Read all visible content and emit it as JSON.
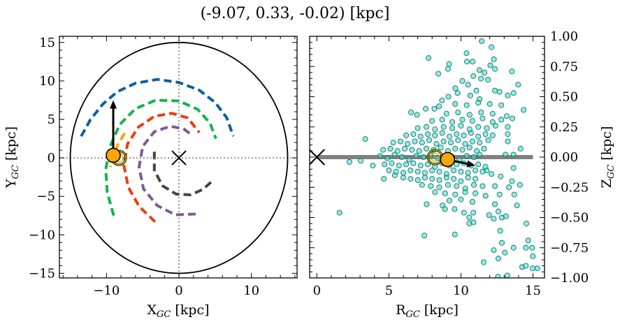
{
  "title": "(-9.07, 0.33, -0.02) [kpc]",
  "colors": {
    "blue": "#0e5ea3",
    "green": "#13b54b",
    "red": "#f23a0e",
    "purple": "#7c5a9c",
    "gray": "#454545",
    "orange": "#ffa500",
    "ring": "#b3a900",
    "scatter_fill": "#40e0d0",
    "scatter_edge": "#0d5f5a",
    "zline": "#808080"
  },
  "chart_data": [
    {
      "type": "line",
      "panel": "left",
      "xlabel": {
        "main": "X",
        "sub": "GC",
        "unit": " [kpc]"
      },
      "ylabel": {
        "main": "Y",
        "sub": "GC",
        "unit": " [kpc]"
      },
      "xlim": [
        -16.5,
        16.3
      ],
      "ylim": [
        -15.6,
        15.8
      ],
      "xticks": [
        -10,
        0,
        10
      ],
      "yticks": [
        -15,
        -10,
        -5,
        0,
        5,
        10,
        15
      ],
      "xtick_labels": [
        "−10",
        "0",
        "10"
      ],
      "ytick_labels": [
        "−15",
        "−10",
        "−5",
        "0",
        "5",
        "10",
        "15"
      ],
      "boundary_circle_radius": 15,
      "center_marker": [
        0,
        0
      ],
      "arms": [
        {
          "color": "blue",
          "points": [
            [
              -13.5,
              2.8
            ],
            [
              -12.2,
              5
            ],
            [
              -10.5,
              7
            ],
            [
              -8.5,
              8.6
            ],
            [
              -6,
              9.7
            ],
            [
              -3,
              10.2
            ],
            [
              0,
              9.8
            ],
            [
              2.8,
              8.8
            ],
            [
              5,
              7.2
            ],
            [
              6.6,
              5.2
            ],
            [
              7.5,
              2.8
            ]
          ]
        },
        {
          "color": "green",
          "points": [
            [
              -9,
              -7.5
            ],
            [
              -9.9,
              -4.5
            ],
            [
              -10.1,
              -1.5
            ],
            [
              -9.5,
              1.5
            ],
            [
              -8.2,
              4.3
            ],
            [
              -6,
              6.4
            ],
            [
              -3.2,
              7.5
            ],
            [
              0,
              7.4
            ],
            [
              2.6,
              6.3
            ],
            [
              4.3,
              4.5
            ],
            [
              5.1,
              2.5
            ]
          ]
        },
        {
          "color": "red",
          "points": [
            [
              -3.3,
              -8.3
            ],
            [
              -5.5,
              -6.3
            ],
            [
              -7,
              -3.8
            ],
            [
              -7.6,
              -1
            ],
            [
              -7.1,
              1.8
            ],
            [
              -5.6,
              4
            ],
            [
              -3.4,
              5.4
            ],
            [
              -1,
              5.8
            ],
            [
              1.2,
              5.2
            ],
            [
              2.8,
              3.3
            ]
          ]
        },
        {
          "color": "purple",
          "points": [
            [
              2.3,
              -7.3
            ],
            [
              -0.5,
              -7.4
            ],
            [
              -3,
              -6.2
            ],
            [
              -4.9,
              -4
            ],
            [
              -5.5,
              -1.2
            ],
            [
              -5,
              1.5
            ],
            [
              -3.4,
              3.4
            ],
            [
              -1.2,
              4.1
            ],
            [
              0.6,
              3.8
            ],
            [
              1.6,
              3.1
            ]
          ]
        },
        {
          "color": "gray",
          "points": [
            [
              -3.4,
              0.8
            ],
            [
              -3.4,
              -1.6
            ],
            [
              -2.3,
              -3.6
            ],
            [
              -0.4,
              -4.7
            ],
            [
              1.6,
              -4.8
            ],
            [
              3.3,
              -4.1
            ],
            [
              4.6,
              -3
            ]
          ]
        },
        {
          "color": "orange",
          "points": [
            [
              -7.5,
              3.2
            ],
            [
              -8.5,
              1.6
            ],
            [
              -9.1,
              0
            ],
            [
              -9.5,
              -1.2
            ]
          ]
        }
      ],
      "sun": {
        "x": -9.07,
        "y": 0.33
      },
      "velocity_arrow_to": {
        "x": -9.07,
        "y": 7.5
      },
      "reference_ring": {
        "x": -8.3,
        "y": 0
      }
    },
    {
      "type": "scatter",
      "panel": "right",
      "xlabel": {
        "main": "R",
        "sub": "GC",
        "unit": " [kpc]"
      },
      "ylabel": {
        "main": "Z",
        "sub": "GC",
        "unit": " [kpc]"
      },
      "xlim": [
        -0.5,
        15.8
      ],
      "ylim": [
        -1.0,
        1.0
      ],
      "xticks": [
        0,
        5,
        10,
        15
      ],
      "yticks": [
        -1.0,
        -0.75,
        -0.5,
        -0.25,
        0.0,
        0.25,
        0.5,
        0.75,
        1.0
      ],
      "xtick_labels": [
        "0",
        "5",
        "10",
        "15"
      ],
      "ytick_labels": [
        "−1.00",
        "−0.75",
        "−0.50",
        "−0.25",
        "0.00",
        "0.25",
        "0.50",
        "0.75",
        "1.00"
      ],
      "ytick_side": "right",
      "plane_line": {
        "from": 0,
        "to": 15,
        "z": 0
      },
      "center_marker": [
        0,
        0
      ],
      "sun": {
        "R": 9.07,
        "z": -0.02
      },
      "velocity_arrow_to": {
        "R": 11.0,
        "z": -0.07
      },
      "reference_ring": {
        "R": 8.2,
        "z": 0
      },
      "points": [
        [
          11.44,
          0.96
        ],
        [
          12.12,
          0.91
        ],
        [
          10.39,
          0.86
        ],
        [
          7.75,
          0.82
        ],
        [
          12.29,
          0.81
        ],
        [
          10.42,
          0.79
        ],
        [
          10.82,
          0.79
        ],
        [
          9.18,
          0.77
        ],
        [
          9.1,
          0.73
        ],
        [
          8.43,
          0.69
        ],
        [
          12.04,
          0.76
        ],
        [
          12.36,
          0.73
        ],
        [
          11.28,
          0.72
        ],
        [
          13.54,
          0.71
        ],
        [
          11.63,
          0.7
        ],
        [
          10.86,
          0.67
        ],
        [
          10.1,
          0.63
        ],
        [
          13.97,
          0.6
        ],
        [
          10.5,
          0.6
        ],
        [
          11.39,
          0.65
        ],
        [
          11.87,
          0.64
        ],
        [
          9.61,
          0.57
        ],
        [
          9.77,
          0.53
        ],
        [
          11.07,
          0.55
        ],
        [
          12.36,
          0.55
        ],
        [
          12.68,
          0.54
        ],
        [
          13.25,
          0.51
        ],
        [
          13.65,
          0.53
        ],
        [
          8.69,
          0.47
        ],
        [
          9.13,
          0.5
        ],
        [
          10.66,
          0.51
        ],
        [
          11.3,
          0.48
        ],
        [
          7.56,
          0.4
        ],
        [
          8.16,
          0.4
        ],
        [
          8.48,
          0.42
        ],
        [
          6.54,
          0.37
        ],
        [
          6.95,
          0.35
        ],
        [
          14.35,
          0.39
        ],
        [
          13.17,
          0.34
        ],
        [
          13.57,
          0.32
        ],
        [
          13.25,
          0.25
        ],
        [
          13.25,
          0.19
        ],
        [
          13.25,
          0.13
        ],
        [
          14.14,
          0.07
        ],
        [
          13.65,
          0.02
        ],
        [
          13.09,
          0.02
        ],
        [
          3.36,
          0.15
        ],
        [
          2.26,
          -0.04
        ],
        [
          3.04,
          -0.03
        ],
        [
          3.88,
          -0.07
        ],
        [
          4.65,
          -0.18
        ],
        [
          5.41,
          -0.15
        ],
        [
          1.57,
          -0.46
        ],
        [
          7.46,
          -0.65
        ],
        [
          9.58,
          -0.64
        ],
        [
          7.62,
          -0.39
        ],
        [
          8.72,
          -0.4
        ],
        [
          8.89,
          -0.43
        ],
        [
          9.56,
          -0.43
        ],
        [
          10.21,
          -0.46
        ],
        [
          10.58,
          -0.5
        ],
        [
          10.58,
          -0.55
        ],
        [
          10.87,
          -0.54
        ],
        [
          10.86,
          -0.46
        ],
        [
          11.95,
          -0.48
        ],
        [
          12.28,
          -0.51
        ],
        [
          12.84,
          -0.5
        ],
        [
          13.12,
          -0.49
        ],
        [
          12.73,
          -0.61
        ],
        [
          13.89,
          -0.4
        ],
        [
          13.7,
          -0.31
        ],
        [
          14.09,
          -0.23
        ],
        [
          13.54,
          -0.2
        ],
        [
          13.65,
          -0.09
        ],
        [
          14.54,
          -0.55
        ],
        [
          14.67,
          -0.69
        ],
        [
          13.65,
          -0.75
        ],
        [
          14.51,
          -0.75
        ],
        [
          14.94,
          -0.75
        ],
        [
          14.99,
          -0.82
        ],
        [
          12.84,
          -0.71
        ],
        [
          12.28,
          -0.77
        ],
        [
          13.05,
          -0.79
        ],
        [
          12.6,
          -0.84
        ],
        [
          11.58,
          -0.87
        ],
        [
          14.25,
          -0.91
        ],
        [
          14.51,
          -0.9
        ],
        [
          14.98,
          -0.92
        ],
        [
          15.31,
          -0.92
        ],
        [
          12.57,
          -0.99
        ],
        [
          13.22,
          -0.98
        ],
        [
          12.36,
          -0.39
        ],
        [
          12.6,
          -0.45
        ],
        [
          11.71,
          -0.32
        ],
        [
          12.68,
          -0.31
        ],
        [
          12.36,
          -0.24
        ],
        [
          13.33,
          -0.25
        ],
        [
          12.76,
          -0.16
        ],
        [
          11.79,
          -0.11
        ],
        [
          12.12,
          -0.14
        ],
        [
          4.4,
          0.01
        ],
        [
          4.9,
          -0.01
        ],
        [
          5.4,
          0.02
        ],
        [
          5.9,
          0.0
        ],
        [
          6.4,
          -0.02
        ],
        [
          6.9,
          0.01
        ],
        [
          7.4,
          0.0
        ],
        [
          7.9,
          0.02
        ],
        [
          8.4,
          -0.01
        ],
        [
          8.9,
          0.01
        ],
        [
          9.4,
          0.0
        ],
        [
          9.9,
          -0.02
        ],
        [
          10.4,
          0.01
        ],
        [
          10.9,
          0.0
        ],
        [
          11.3,
          0.02
        ],
        [
          4.6,
          0.06
        ],
        [
          5.1,
          0.07
        ],
        [
          5.6,
          0.05
        ],
        [
          6.1,
          0.07
        ],
        [
          6.6,
          0.06
        ],
        [
          7.1,
          0.05
        ],
        [
          7.6,
          0.07
        ],
        [
          8.1,
          0.06
        ],
        [
          8.6,
          0.08
        ],
        [
          9.1,
          0.05
        ],
        [
          9.6,
          0.07
        ],
        [
          10.1,
          0.06
        ],
        [
          10.6,
          0.08
        ],
        [
          11.1,
          0.05
        ],
        [
          11.6,
          0.07
        ],
        [
          4.7,
          -0.06
        ],
        [
          5.2,
          -0.05
        ],
        [
          5.7,
          -0.07
        ],
        [
          6.2,
          -0.06
        ],
        [
          6.7,
          -0.05
        ],
        [
          7.2,
          -0.07
        ],
        [
          7.7,
          -0.06
        ],
        [
          8.2,
          -0.08
        ],
        [
          8.7,
          -0.05
        ],
        [
          9.2,
          -0.07
        ],
        [
          9.7,
          -0.06
        ],
        [
          10.2,
          -0.05
        ],
        [
          10.7,
          -0.07
        ],
        [
          11.2,
          -0.06
        ],
        [
          11.7,
          -0.08
        ],
        [
          5.3,
          0.12
        ],
        [
          5.8,
          0.13
        ],
        [
          6.3,
          0.11
        ],
        [
          6.8,
          0.13
        ],
        [
          7.3,
          0.12
        ],
        [
          7.8,
          0.14
        ],
        [
          8.3,
          0.11
        ],
        [
          8.8,
          0.13
        ],
        [
          9.3,
          0.12
        ],
        [
          9.8,
          0.14
        ],
        [
          10.3,
          0.11
        ],
        [
          10.8,
          0.13
        ],
        [
          11.3,
          0.12
        ],
        [
          11.9,
          0.14
        ],
        [
          5.0,
          -0.11
        ],
        [
          5.5,
          -0.12
        ],
        [
          6.0,
          -0.13
        ],
        [
          6.5,
          -0.11
        ],
        [
          7.0,
          -0.12
        ],
        [
          7.5,
          -0.13
        ],
        [
          8.0,
          -0.11
        ],
        [
          8.5,
          -0.12
        ],
        [
          9.0,
          -0.14
        ],
        [
          9.5,
          -0.11
        ],
        [
          10.0,
          -0.12
        ],
        [
          10.5,
          -0.13
        ],
        [
          11.0,
          -0.11
        ],
        [
          11.5,
          -0.12
        ],
        [
          6.2,
          0.18
        ],
        [
          6.7,
          0.19
        ],
        [
          7.2,
          0.17
        ],
        [
          7.7,
          0.19
        ],
        [
          8.2,
          0.18
        ],
        [
          8.7,
          0.2
        ],
        [
          9.2,
          0.17
        ],
        [
          9.7,
          0.19
        ],
        [
          10.2,
          0.18
        ],
        [
          10.7,
          0.2
        ],
        [
          11.2,
          0.17
        ],
        [
          11.7,
          0.19
        ],
        [
          12.2,
          0.18
        ],
        [
          6.0,
          -0.17
        ],
        [
          6.5,
          -0.18
        ],
        [
          7.0,
          -0.19
        ],
        [
          7.5,
          -0.17
        ],
        [
          8.0,
          -0.18
        ],
        [
          8.5,
          -0.19
        ],
        [
          9.0,
          -0.17
        ],
        [
          9.5,
          -0.18
        ],
        [
          10.0,
          -0.2
        ],
        [
          10.5,
          -0.17
        ],
        [
          11.0,
          -0.18
        ],
        [
          7.0,
          0.24
        ],
        [
          7.6,
          0.25
        ],
        [
          8.2,
          0.23
        ],
        [
          8.8,
          0.25
        ],
        [
          9.4,
          0.24
        ],
        [
          10.0,
          0.26
        ],
        [
          10.6,
          0.23
        ],
        [
          11.2,
          0.25
        ],
        [
          11.8,
          0.24
        ],
        [
          12.4,
          0.26
        ],
        [
          7.3,
          -0.23
        ],
        [
          7.9,
          -0.24
        ],
        [
          8.5,
          -0.25
        ],
        [
          9.1,
          -0.23
        ],
        [
          9.7,
          -0.24
        ],
        [
          10.3,
          -0.26
        ],
        [
          10.9,
          -0.23
        ],
        [
          11.5,
          -0.24
        ],
        [
          8.0,
          0.3
        ],
        [
          8.7,
          0.31
        ],
        [
          9.4,
          0.29
        ],
        [
          10.1,
          0.31
        ],
        [
          10.8,
          0.3
        ],
        [
          11.5,
          0.32
        ],
        [
          12.2,
          0.29
        ],
        [
          12.8,
          0.31
        ],
        [
          8.2,
          -0.29
        ],
        [
          8.9,
          -0.3
        ],
        [
          9.6,
          -0.31
        ],
        [
          10.3,
          -0.29
        ],
        [
          11.0,
          -0.3
        ],
        [
          9.0,
          0.36
        ],
        [
          9.8,
          0.37
        ],
        [
          10.6,
          0.35
        ],
        [
          11.4,
          0.37
        ],
        [
          12.2,
          0.36
        ],
        [
          9.6,
          0.44
        ],
        [
          10.4,
          0.43
        ],
        [
          11.2,
          0.45
        ],
        [
          12.0,
          0.44
        ],
        [
          12.8,
          0.43
        ],
        [
          9.2,
          -0.36
        ],
        [
          10.0,
          -0.35
        ],
        [
          10.8,
          -0.37
        ]
      ]
    }
  ]
}
